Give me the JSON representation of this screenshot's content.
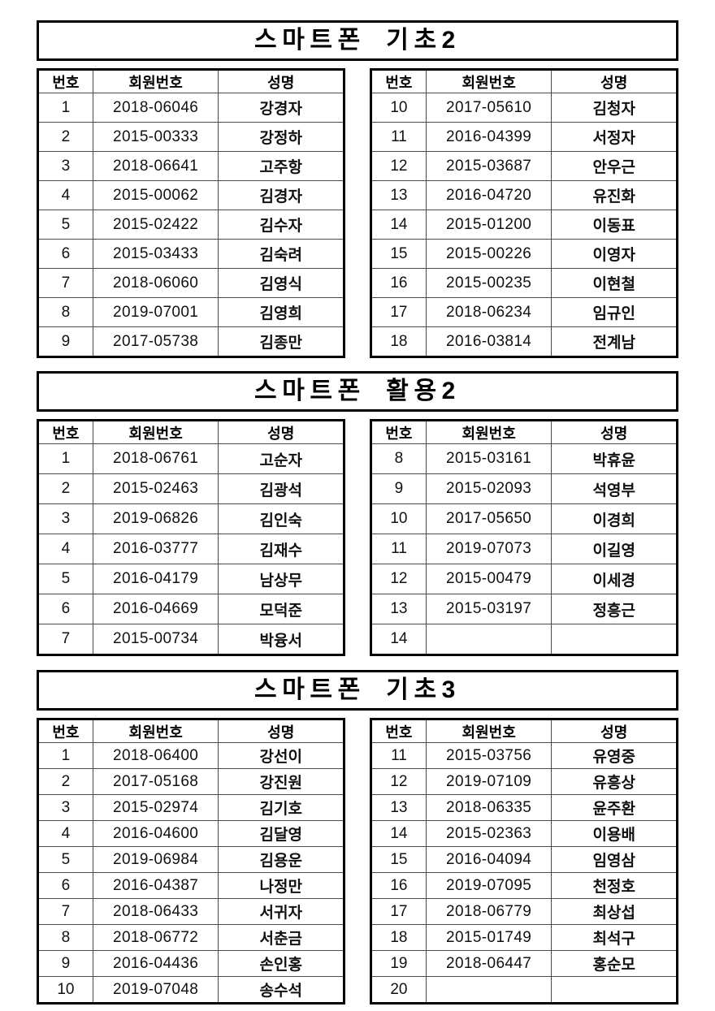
{
  "page": {
    "background": "#ffffff",
    "text_color": "#111111",
    "border_color": "#000000"
  },
  "table_headers": [
    "번호",
    "회원번호",
    "성명"
  ],
  "sections": [
    {
      "title": "스마트폰 기초2",
      "left_rows": [
        [
          "1",
          "2018-06046",
          "강경자"
        ],
        [
          "2",
          "2015-00333",
          "강정하"
        ],
        [
          "3",
          "2018-06641",
          "고주항"
        ],
        [
          "4",
          "2015-00062",
          "김경자"
        ],
        [
          "5",
          "2015-02422",
          "김수자"
        ],
        [
          "6",
          "2015-03433",
          "김숙려"
        ],
        [
          "7",
          "2018-06060",
          "김영식"
        ],
        [
          "8",
          "2019-07001",
          "김영희"
        ],
        [
          "9",
          "2017-05738",
          "김종만"
        ]
      ],
      "right_rows": [
        [
          "10",
          "2017-05610",
          "김청자"
        ],
        [
          "11",
          "2016-04399",
          "서정자"
        ],
        [
          "12",
          "2015-03687",
          "안우근"
        ],
        [
          "13",
          "2016-04720",
          "유진화"
        ],
        [
          "14",
          "2015-01200",
          "이동표"
        ],
        [
          "15",
          "2015-00226",
          "이영자"
        ],
        [
          "16",
          "2015-00235",
          "이현철"
        ],
        [
          "17",
          "2018-06234",
          "임규인"
        ],
        [
          "18",
          "2016-03814",
          "전계남"
        ]
      ]
    },
    {
      "title": "스마트폰 활용2",
      "left_rows": [
        [
          "1",
          "2018-06761",
          "고순자"
        ],
        [
          "2",
          "2015-02463",
          "김광석"
        ],
        [
          "3",
          "2019-06826",
          "김인숙"
        ],
        [
          "4",
          "2016-03777",
          "김재수"
        ],
        [
          "5",
          "2016-04179",
          "남상무"
        ],
        [
          "6",
          "2016-04669",
          "모덕준"
        ],
        [
          "7",
          "2015-00734",
          "박융서"
        ]
      ],
      "right_rows": [
        [
          "8",
          "2015-03161",
          "박휴윤"
        ],
        [
          "9",
          "2015-02093",
          "석영부"
        ],
        [
          "10",
          "2017-05650",
          "이경희"
        ],
        [
          "11",
          "2019-07073",
          "이길영"
        ],
        [
          "12",
          "2015-00479",
          "이세경"
        ],
        [
          "13",
          "2015-03197",
          "정흥근"
        ],
        [
          "14",
          "",
          ""
        ]
      ]
    },
    {
      "title": "스마트폰 기초3",
      "left_rows": [
        [
          "1",
          "2018-06400",
          "강선이"
        ],
        [
          "2",
          "2017-05168",
          "강진원"
        ],
        [
          "3",
          "2015-02974",
          "김기호"
        ],
        [
          "4",
          "2016-04600",
          "김달영"
        ],
        [
          "5",
          "2019-06984",
          "김용운"
        ],
        [
          "6",
          "2016-04387",
          "나정만"
        ],
        [
          "7",
          "2018-06433",
          "서귀자"
        ],
        [
          "8",
          "2018-06772",
          "서춘금"
        ],
        [
          "9",
          "2016-04436",
          "손인홍"
        ],
        [
          "10",
          "2019-07048",
          "송수석"
        ]
      ],
      "right_rows": [
        [
          "11",
          "2015-03756",
          "유영중"
        ],
        [
          "12",
          "2019-07109",
          "유흥상"
        ],
        [
          "13",
          "2018-06335",
          "윤주환"
        ],
        [
          "14",
          "2015-02363",
          "이용배"
        ],
        [
          "15",
          "2016-04094",
          "임영삼"
        ],
        [
          "16",
          "2019-07095",
          "천정호"
        ],
        [
          "17",
          "2018-06779",
          "최상섭"
        ],
        [
          "18",
          "2015-01749",
          "최석구"
        ],
        [
          "19",
          "2018-06447",
          "홍순모"
        ],
        [
          "20",
          "",
          ""
        ]
      ]
    }
  ]
}
